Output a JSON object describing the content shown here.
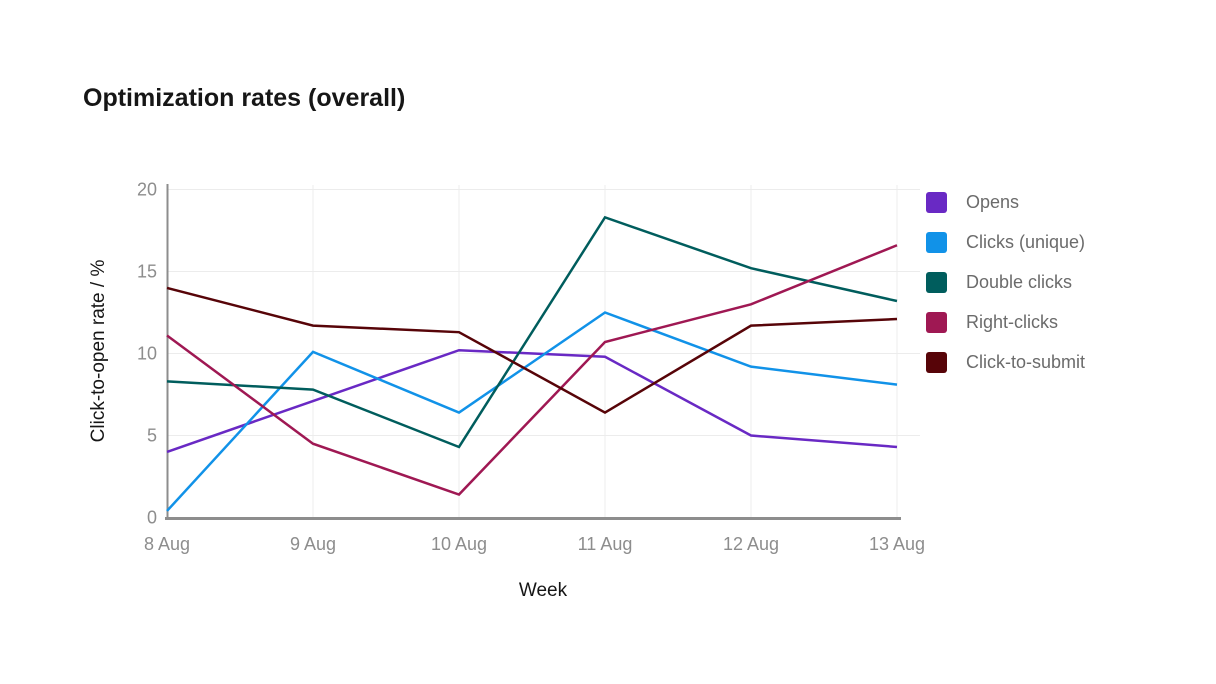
{
  "chart_data": {
    "type": "line",
    "title": "Optimization rates (overall)",
    "xlabel": "Week",
    "ylabel": "Click-to-open rate / %",
    "categories": [
      "8 Aug",
      "9 Aug",
      "10 Aug",
      "11 Aug",
      "12 Aug",
      "13 Aug"
    ],
    "y_ticks": [
      0,
      5,
      10,
      15,
      20
    ],
    "y_tick_labels": [
      "0",
      "5",
      "10",
      "15",
      "20"
    ],
    "ylim": [
      0,
      20
    ],
    "grid": true,
    "legend_position": "right",
    "series": [
      {
        "name": "Opens",
        "color": "#6929c4",
        "values": [
          4.0,
          7.1,
          10.2,
          9.8,
          5.0,
          4.3
        ]
      },
      {
        "name": "Clicks (unique)",
        "color": "#1192e8",
        "values": [
          0.4,
          10.1,
          6.4,
          12.5,
          9.2,
          8.1
        ]
      },
      {
        "name": "Double clicks",
        "color": "#005d5d",
        "values": [
          8.3,
          7.8,
          4.3,
          18.3,
          15.2,
          13.2
        ]
      },
      {
        "name": "Right-clicks",
        "color": "#9f1853",
        "values": [
          11.1,
          4.5,
          1.4,
          10.7,
          13.0,
          16.6
        ]
      },
      {
        "name": "Click-to-submit",
        "color": "#570408",
        "values": [
          14.0,
          11.7,
          11.3,
          6.4,
          11.7,
          12.1
        ]
      }
    ],
    "style": {
      "grid_color": "#ececec",
      "axis_color": "#8d8d8d",
      "tick_label_color": "#8d8d8d",
      "axis_title_color": "#161616",
      "legend_text_color": "#6b6b6b",
      "title_color": "#161616",
      "background": "#ffffff"
    }
  }
}
